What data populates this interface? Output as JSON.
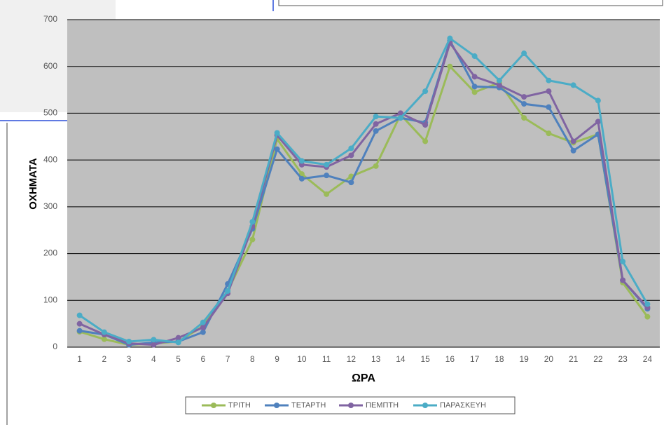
{
  "chart_data": {
    "type": "line",
    "x_label": "ΩΡΑ",
    "y_label": "ΟΧΗΜΑΤΑ",
    "categories": [
      1,
      2,
      3,
      4,
      5,
      6,
      7,
      8,
      9,
      10,
      11,
      12,
      13,
      14,
      15,
      16,
      17,
      18,
      19,
      20,
      21,
      22,
      23,
      24
    ],
    "series": [
      {
        "name": "ΤΡΙΤΗ",
        "color": "#9bbb59",
        "values": [
          33,
          17,
          5,
          8,
          12,
          45,
          120,
          230,
          445,
          370,
          327,
          365,
          387,
          497,
          440,
          600,
          545,
          565,
          490,
          457,
          437,
          455,
          138,
          65
        ]
      },
      {
        "name": "ΤΕΤΑΡΤΗ",
        "color": "#4f81bd",
        "values": [
          35,
          27,
          5,
          10,
          12,
          32,
          135,
          253,
          423,
          360,
          367,
          352,
          462,
          490,
          480,
          655,
          557,
          555,
          520,
          513,
          420,
          455,
          143,
          82
        ]
      },
      {
        "name": "ΠΕΜΠΤΗ",
        "color": "#8064a2",
        "values": [
          50,
          27,
          8,
          5,
          20,
          42,
          115,
          258,
          453,
          390,
          385,
          410,
          477,
          500,
          475,
          650,
          578,
          560,
          535,
          547,
          440,
          482,
          143,
          85
        ]
      },
      {
        "name": "ΠΑΡΑΣΚΕΥΗ",
        "color": "#4bacc6",
        "values": [
          68,
          32,
          12,
          16,
          10,
          53,
          120,
          268,
          458,
          398,
          390,
          425,
          493,
          490,
          547,
          660,
          622,
          570,
          628,
          570,
          560,
          527,
          183,
          92
        ]
      }
    ],
    "ylim": [
      0,
      700
    ],
    "yticks": [
      0,
      100,
      200,
      300,
      400,
      500,
      600,
      700
    ],
    "grid": true,
    "legend": "bottom"
  }
}
